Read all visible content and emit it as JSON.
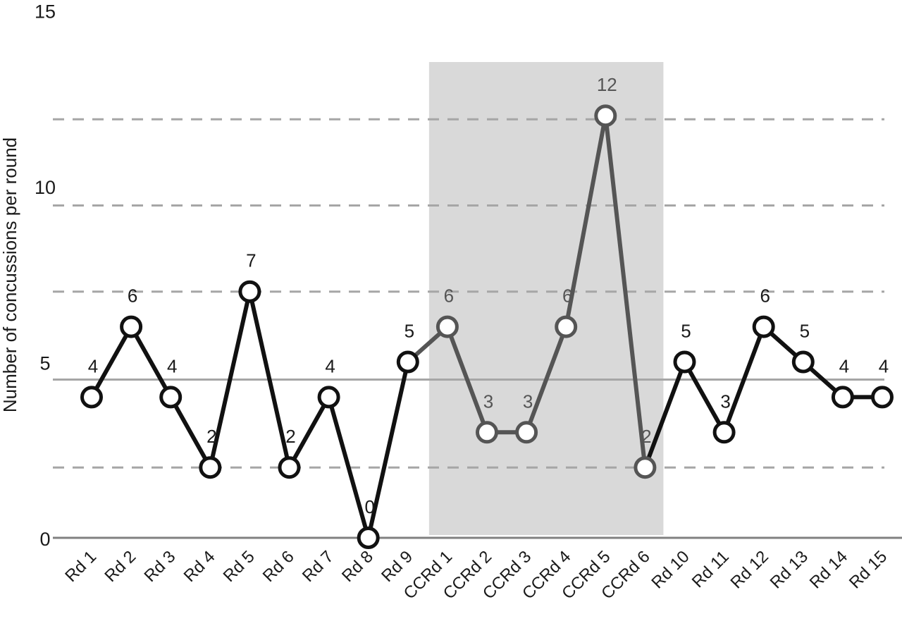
{
  "chart_data": {
    "type": "line",
    "ylabel": "Number of concussions per round",
    "xlabel": "",
    "title": "",
    "ylim": [
      0,
      15
    ],
    "yticks": [
      0,
      5,
      10,
      15
    ],
    "categories": [
      "Rd 1",
      "Rd 2",
      "Rd 3",
      "Rd 4",
      "Rd 5",
      "Rd 6",
      "Rd 7",
      "Rd 8",
      "Rd 9",
      "CCRd 1",
      "CCRd 2",
      "CCRd 3",
      "CCRd 4",
      "CCRd 5",
      "CCRd 6",
      "Rd 10",
      "Rd 11",
      "Rd 12",
      "Rd 13",
      "Rd 14",
      "Rd 15"
    ],
    "values": [
      4,
      6,
      4,
      2,
      7,
      2,
      4,
      0,
      5,
      6,
      3,
      3,
      6,
      12,
      2,
      5,
      3,
      6,
      5,
      4,
      4
    ],
    "data_labels": [
      "4",
      "6",
      "4",
      "2",
      "7",
      "2",
      "4",
      "0",
      "5",
      "6",
      "3",
      "3",
      "6",
      "12",
      "2",
      "5",
      "3",
      "6",
      "5",
      "4",
      "4"
    ],
    "highlight_range": [
      "CCRd 1",
      "CCRd 6"
    ],
    "reference_lines": {
      "mean": 4.5,
      "dashed": [
        2,
        7,
        9.45,
        11.9
      ]
    },
    "grid": false,
    "legend": "none",
    "colors": {
      "main_series": "#111111",
      "highlight_series": "#555555",
      "highlight_band": "#d9d9d9",
      "mean_line": "#a6a6a6",
      "dashed_lines": "#a6a6a6",
      "axis": "#808080",
      "marker_fill": "#ffffff"
    }
  }
}
